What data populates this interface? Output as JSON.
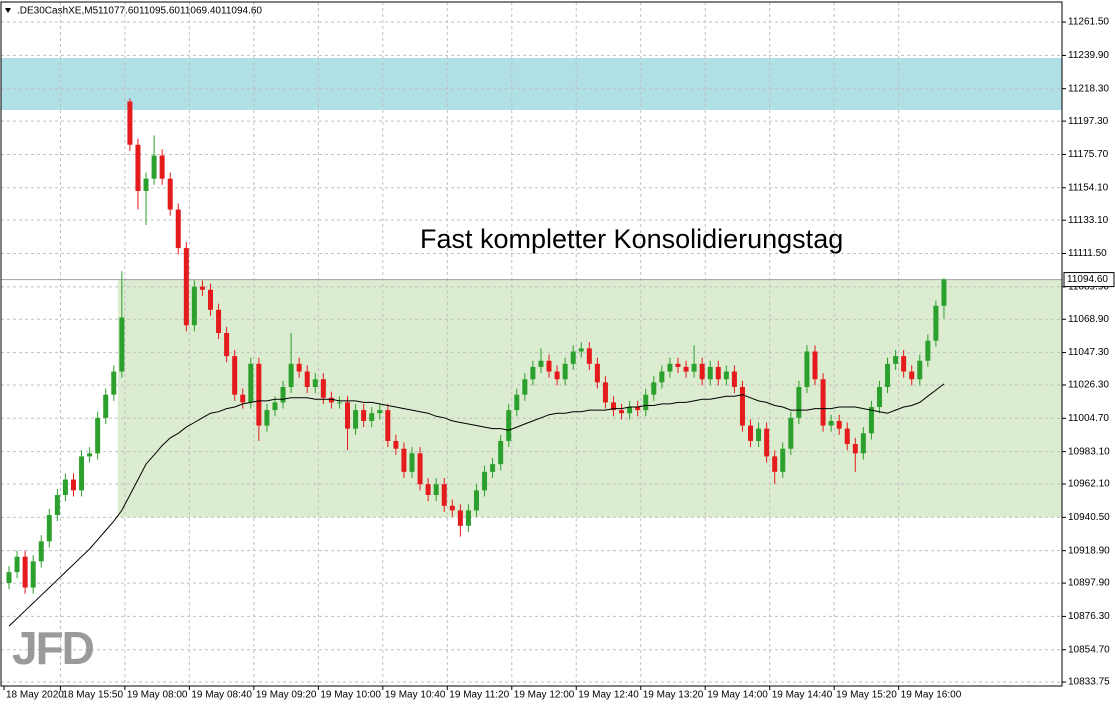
{
  "chart_data": {
    "type": "candlestick",
    "symbol": ".DE30CashXE,M5",
    "header_values": [
      "11077.60",
      "11095.60",
      "11069.40",
      "11094.60"
    ],
    "annotation": "Fast kompletter Konsolidierungstag",
    "logo": "JFD",
    "up_color": "#2ca02c",
    "down_color": "#e41a1c",
    "grid": true,
    "ylim": [
      10831.2,
      11274.5
    ],
    "yticks": [
      {
        "value": 11261.5,
        "label": "11261.50"
      },
      {
        "value": 11239.9,
        "label": "11239.90"
      },
      {
        "value": 11218.3,
        "label": "11218.30"
      },
      {
        "value": 11197.3,
        "label": "11197.30"
      },
      {
        "value": 11175.7,
        "label": "11175.70"
      },
      {
        "value": 11154.1,
        "label": "11154.10"
      },
      {
        "value": 11133.1,
        "label": "11133.10"
      },
      {
        "value": 11111.5,
        "label": "11111.50"
      },
      {
        "value": 11089.9,
        "label": "11089.90"
      },
      {
        "value": 11068.9,
        "label": "11068.90"
      },
      {
        "value": 11047.3,
        "label": "11047.30"
      },
      {
        "value": 11026.3,
        "label": "11026.30"
      },
      {
        "value": 11004.7,
        "label": "11004.70"
      },
      {
        "value": 10983.1,
        "label": "10983.10"
      },
      {
        "value": 10962.1,
        "label": "10962.10"
      },
      {
        "value": 10940.5,
        "label": "10940.50"
      },
      {
        "value": 10918.9,
        "label": "10918.90"
      },
      {
        "value": 10897.9,
        "label": "10897.90"
      },
      {
        "value": 10876.3,
        "label": "10876.30"
      },
      {
        "value": 10854.7,
        "label": "10854.70"
      },
      {
        "value": 10833.75,
        "label": "10833.75"
      }
    ],
    "current_price": 11094.6,
    "zones": [
      {
        "low": 11204.5,
        "high": 11238.2,
        "color": "#b0dfe5"
      },
      {
        "low": 10940.7,
        "high": 11094.4,
        "color": "#dcecd0"
      }
    ],
    "categories": [
      "18 May 2020",
      null,
      null,
      null,
      null,
      null,
      null,
      "18 May 15:50",
      null,
      null,
      null,
      null,
      null,
      null,
      null,
      "19 May 08:00",
      null,
      null,
      null,
      null,
      null,
      null,
      null,
      "19 May 08:40",
      null,
      null,
      null,
      null,
      null,
      null,
      null,
      "19 May 09:20",
      null,
      null,
      null,
      null,
      null,
      null,
      null,
      "19 May 10:00",
      null,
      null,
      null,
      null,
      null,
      null,
      null,
      "19 May 10:40",
      null,
      null,
      null,
      null,
      null,
      null,
      null,
      "19 May 11:20",
      null,
      null,
      null,
      null,
      null,
      null,
      null,
      "19 May 12:00",
      null,
      null,
      null,
      null,
      null,
      null,
      null,
      "19 May 12:40",
      null,
      null,
      null,
      null,
      null,
      null,
      null,
      "19 May 13:20",
      null,
      null,
      null,
      null,
      null,
      null,
      null,
      "19 May 14:00",
      null,
      null,
      null,
      null,
      null,
      null,
      null,
      "19 May 14:40",
      null,
      null,
      null,
      null,
      null,
      null,
      null,
      "19 May 15:20",
      null,
      null,
      null,
      null,
      null,
      null,
      null,
      "19 May 16:00",
      null,
      null,
      null,
      null,
      null
    ],
    "open": [
      10898,
      10905,
      10915,
      10895,
      10912,
      10925,
      10942,
      10955,
      10965,
      10958,
      10980,
      10982,
      11005,
      11020,
      11035,
      11210,
      11182,
      11152,
      11160,
      11175,
      11160,
      11140,
      11115,
      11065,
      11090,
      11088,
      11075,
      11060,
      11045,
      11020,
      11015,
      11040,
      11000,
      11010,
      11015,
      11025,
      11040,
      11035,
      11025,
      11030,
      11018,
      11015,
      11015,
      10998,
      11010,
      11003,
      11008,
      11010,
      10990,
      10985,
      10970,
      10982,
      10962,
      10955,
      10962,
      10948,
      10945,
      10935,
      10945,
      10958,
      10970,
      10975,
      10990,
      11010,
      11020,
      11030,
      11038,
      11042,
      11035,
      11030,
      11040,
      11048,
      11050,
      11040,
      11028,
      11015,
      11010,
      11008,
      11012,
      11010,
      11020,
      11028,
      11035,
      11040,
      11038,
      11035,
      11040,
      11030,
      11038,
      11030,
      11035,
      11025,
      11000,
      10990,
      10998,
      10980,
      10970,
      10985,
      11005,
      11025,
      11048,
      11030,
      11000,
      11003,
      10998,
      10988,
      10982,
      10995,
      11012,
      11025,
      11040,
      11045,
      11035,
      11030,
      11042,
      11055,
      11077.6
    ],
    "high": [
      10909,
      10919,
      10919,
      10916,
      10929,
      10946,
      10959,
      10969,
      10969,
      10984,
      10986,
      11009,
      11024,
      11039,
      11100,
      11212,
      11186,
      11164,
      11188,
      11179,
      11164,
      11144,
      11119,
      11094,
      11094,
      11092,
      11079,
      11064,
      11049,
      11024,
      11044,
      11044,
      11014,
      11019,
      11029,
      11060,
      11044,
      11039,
      11034,
      11034,
      11022,
      11019,
      11019,
      11014,
      11014,
      11012,
      11014,
      11014,
      10994,
      10989,
      10986,
      10986,
      10966,
      10966,
      10966,
      10952,
      10949,
      10949,
      10962,
      10974,
      10979,
      10994,
      11014,
      11024,
      11034,
      11042,
      11050,
      11046,
      11039,
      11044,
      11052,
      11054,
      11054,
      11044,
      11032,
      11019,
      11014,
      11016,
      11016,
      11024,
      11032,
      11039,
      11044,
      11044,
      11042,
      11052,
      11044,
      11042,
      11042,
      11039,
      11039,
      11029,
      11004,
      11002,
      11002,
      10984,
      10989,
      11009,
      11029,
      11052,
      11052,
      11034,
      11007,
      11007,
      11002,
      10992,
      10999,
      11016,
      11029,
      11044,
      11049,
      11049,
      11039,
      11046,
      11059,
      11081,
      11095.6
    ],
    "low": [
      10894,
      10901,
      10891,
      10891,
      10908,
      10921,
      10938,
      10951,
      10954,
      10954,
      10976,
      10978,
      11001,
      11016,
      11031,
      11178,
      11140,
      11130,
      11156,
      11156,
      11136,
      11111,
      11061,
      11061,
      11084,
      11071,
      11056,
      11041,
      11016,
      11011,
      11011,
      10990,
      10996,
      11006,
      11011,
      11021,
      11031,
      11021,
      11021,
      11014,
      11011,
      11011,
      10984,
      10994,
      10999,
      10999,
      11004,
      10986,
      10981,
      10966,
      10966,
      10958,
      10951,
      10951,
      10944,
      10941,
      10928,
      10931,
      10941,
      10954,
      10966,
      10971,
      10986,
      11006,
      11016,
      11026,
      11034,
      11031,
      11026,
      11026,
      11036,
      11044,
      11036,
      11024,
      11011,
      11006,
      11004,
      11004,
      11006,
      11006,
      11016,
      11024,
      11031,
      11034,
      11031,
      11031,
      11026,
      11026,
      11026,
      11026,
      11021,
      10996,
      10986,
      10986,
      10976,
      10962,
      10966,
      10981,
      11001,
      11021,
      11026,
      10996,
      10996,
      10994,
      10984,
      10970,
      10978,
      10991,
      11008,
      11021,
      11036,
      11031,
      11026,
      11026,
      11038,
      11051,
      11069.4
    ],
    "close": [
      10905,
      10915,
      10895,
      10912,
      10925,
      10942,
      10955,
      10965,
      10958,
      10980,
      10982,
      11005,
      11020,
      11035,
      11070,
      11182,
      11152,
      11160,
      11175,
      11160,
      11140,
      11115,
      11065,
      11090,
      11088,
      11075,
      11060,
      11045,
      11020,
      11015,
      11040,
      11000,
      11010,
      11015,
      11025,
      11040,
      11035,
      11025,
      11030,
      11018,
      11015,
      11015,
      10998,
      11010,
      11003,
      11008,
      11010,
      10990,
      10985,
      10970,
      10982,
      10962,
      10955,
      10962,
      10948,
      10945,
      10935,
      10945,
      10958,
      10970,
      10975,
      10990,
      11010,
      11020,
      11030,
      11038,
      11042,
      11035,
      11030,
      11040,
      11048,
      11050,
      11040,
      11028,
      11015,
      11010,
      11008,
      11012,
      11010,
      11020,
      11028,
      11035,
      11040,
      11038,
      11035,
      11040,
      11030,
      11038,
      11030,
      11035,
      11025,
      11000,
      10990,
      10998,
      10980,
      10970,
      10985,
      11005,
      11025,
      11048,
      11030,
      11000,
      11003,
      10998,
      10988,
      10982,
      10995,
      11012,
      11025,
      11040,
      11045,
      11035,
      11030,
      11042,
      11055,
      11077.6,
      11094.6
    ],
    "ma": {
      "color": "#000000",
      "values": [
        10870,
        10875,
        10880,
        10885,
        10890,
        10895,
        10900,
        10905,
        10910,
        10915,
        10920,
        10926,
        10932,
        10938,
        10945,
        10955,
        10965,
        10975,
        10981,
        10987,
        10992,
        10995,
        10999,
        11002,
        11005,
        11008,
        11009,
        11011,
        11012,
        11014,
        11015,
        11016,
        11016,
        11017,
        11017,
        11018,
        11018,
        11018,
        11017,
        11017,
        11017,
        11016,
        11016,
        11016,
        11015,
        11015,
        11014,
        11013,
        11012,
        11011,
        11010,
        11009,
        11008,
        11006,
        11005,
        11003,
        11002,
        11001,
        11000,
        10999,
        10998,
        10998,
        10997,
        10999,
        11001,
        11003,
        11005,
        11007,
        11008,
        11008,
        11009,
        11009,
        11010,
        11010,
        11010,
        11011,
        11011,
        11012,
        11012,
        11013,
        11013,
        11014,
        11014,
        11015,
        11015,
        11016,
        11017,
        11017,
        11018,
        11019,
        11019,
        11020,
        11018,
        11016,
        11015,
        11013,
        11012,
        11010,
        11010,
        11010,
        11011,
        11011,
        11011,
        11012,
        11012,
        11012,
        11011,
        11010,
        11009,
        11008,
        11010,
        11012,
        11013,
        11015,
        11019,
        11023,
        11027
      ]
    }
  }
}
